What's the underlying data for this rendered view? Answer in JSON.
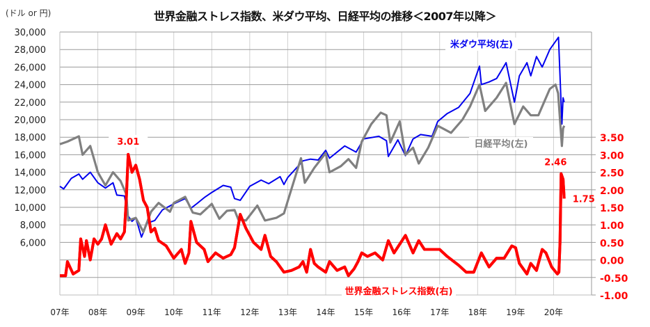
{
  "chart_data": {
    "type": "line",
    "title": "世界金融ストレス指数、米ダウ平均、日経平均の推移＜2007年以降＞",
    "left_axis_unit": "(ドル or 円)",
    "left_axis": {
      "range": [
        0,
        30000
      ],
      "ticks": [
        "30,000",
        "28,000",
        "26,000",
        "24,000",
        "22,000",
        "20,000",
        "18,000",
        "16,000",
        "14,000",
        "12,000",
        "10,000",
        "8,000",
        "6,000"
      ],
      "tick_values": [
        30000,
        28000,
        26000,
        24000,
        22000,
        20000,
        18000,
        16000,
        14000,
        12000,
        10000,
        8000,
        6000
      ]
    },
    "right_axis": {
      "range": [
        -1.0,
        6.5
      ],
      "ticks": [
        "3.50",
        "3.00",
        "2.50",
        "2.00",
        "1.50",
        "1.00",
        "0.50",
        "0.00",
        "-0.50",
        "-1.00"
      ],
      "tick_values": [
        3.5,
        3.0,
        2.5,
        2.0,
        1.5,
        1.0,
        0.5,
        0.0,
        -0.5,
        -1.0
      ]
    },
    "x_axis": {
      "range": [
        2007,
        2021
      ],
      "ticks": [
        "07年",
        "08年",
        "09年",
        "10年",
        "11年",
        "12年",
        "13年",
        "14年",
        "15年",
        "16年",
        "17年",
        "18年",
        "19年",
        "20年"
      ],
      "tick_values": [
        2007,
        2008,
        2009,
        2010,
        2011,
        2012,
        2013,
        2014,
        2015,
        2016,
        2017,
        2018,
        2019,
        2020
      ]
    },
    "grid": true,
    "series": [
      {
        "name": "米ダウ平均(左)",
        "axis": "left",
        "color": "#0000ee",
        "x": [
          2007.0,
          2007.1,
          2007.3,
          2007.5,
          2007.6,
          2007.8,
          2008.0,
          2008.2,
          2008.4,
          2008.5,
          2008.7,
          2008.8,
          2008.9,
          2009.0,
          2009.15,
          2009.3,
          2009.5,
          2009.7,
          2010.0,
          2010.3,
          2010.45,
          2010.6,
          2010.8,
          2011.0,
          2011.3,
          2011.5,
          2011.6,
          2011.75,
          2012.0,
          2012.3,
          2012.5,
          2012.8,
          2012.9,
          2013.0,
          2013.4,
          2013.6,
          2013.8,
          2014.0,
          2014.1,
          2014.5,
          2014.8,
          2015.0,
          2015.4,
          2015.6,
          2015.65,
          2015.9,
          2016.1,
          2016.3,
          2016.5,
          2016.8,
          2016.95,
          2017.2,
          2017.5,
          2017.8,
          2018.05,
          2018.1,
          2018.3,
          2018.5,
          2018.75,
          2018.97,
          2019.1,
          2019.3,
          2019.4,
          2019.55,
          2019.7,
          2019.9,
          2020.13,
          2020.17,
          2020.22,
          2020.25,
          2020.28
        ],
        "y": [
          12400,
          12100,
          13300,
          13800,
          13200,
          14000,
          12800,
          12200,
          12800,
          11400,
          11300,
          9000,
          8400,
          8800,
          6600,
          8200,
          8500,
          9700,
          10400,
          11000,
          9900,
          10400,
          11100,
          11700,
          12500,
          12300,
          11000,
          10800,
          12400,
          13100,
          12700,
          13500,
          12600,
          13400,
          15300,
          15500,
          15400,
          16500,
          15600,
          17000,
          16300,
          17800,
          18100,
          17600,
          15800,
          17700,
          15900,
          17800,
          18300,
          18100,
          19800,
          20700,
          21400,
          23000,
          26100,
          24000,
          24300,
          24700,
          26500,
          22000,
          25000,
          26500,
          25000,
          27200,
          26000,
          28000,
          29400,
          25000,
          19500,
          22500,
          22000
        ]
      },
      {
        "name": "日経平均(左)",
        "axis": "left",
        "color": "#808080",
        "x": [
          2007.0,
          2007.2,
          2007.5,
          2007.6,
          2007.8,
          2008.0,
          2008.2,
          2008.4,
          2008.6,
          2008.75,
          2008.8,
          2009.0,
          2009.2,
          2009.4,
          2009.6,
          2009.9,
          2010.0,
          2010.3,
          2010.5,
          2010.7,
          2011.0,
          2011.2,
          2011.4,
          2011.6,
          2011.7,
          2011.9,
          2012.2,
          2012.4,
          2012.7,
          2012.9,
          2013.0,
          2013.35,
          2013.45,
          2013.7,
          2014.0,
          2014.1,
          2014.4,
          2014.6,
          2014.8,
          2014.95,
          2015.2,
          2015.45,
          2015.6,
          2015.7,
          2015.95,
          2016.1,
          2016.3,
          2016.45,
          2016.7,
          2016.95,
          2017.3,
          2017.6,
          2017.8,
          2018.05,
          2018.2,
          2018.5,
          2018.75,
          2018.97,
          2019.2,
          2019.4,
          2019.6,
          2019.9,
          2020.05,
          2020.12,
          2020.17,
          2020.22,
          2020.25,
          2020.28
        ],
        "y": [
          17200,
          17500,
          18100,
          16000,
          17000,
          14000,
          12500,
          14000,
          13000,
          11500,
          8500,
          8800,
          7200,
          9500,
          10500,
          9500,
          10500,
          11200,
          9400,
          9200,
          10400,
          8700,
          9600,
          9700,
          8600,
          8500,
          10200,
          8500,
          8800,
          9300,
          10700,
          15600,
          12800,
          14500,
          16200,
          14000,
          14700,
          15500,
          14500,
          17500,
          19500,
          20800,
          20500,
          17400,
          19800,
          16000,
          16800,
          15000,
          16800,
          19300,
          18500,
          20000,
          21500,
          24000,
          21000,
          22500,
          24200,
          19500,
          21500,
          20500,
          20500,
          23500,
          24000,
          23000,
          20000,
          17000,
          19000,
          19300
        ]
      },
      {
        "name": "世界金融ストレス指数(右)",
        "axis": "right",
        "color": "#ff0000",
        "x": [
          2007.0,
          2007.15,
          2007.2,
          2007.35,
          2007.5,
          2007.55,
          2007.65,
          2007.7,
          2007.8,
          2007.9,
          2008.0,
          2008.1,
          2008.2,
          2008.35,
          2008.5,
          2008.6,
          2008.7,
          2008.75,
          2008.8,
          2008.9,
          2009.0,
          2009.1,
          2009.2,
          2009.3,
          2009.4,
          2009.5,
          2009.6,
          2009.8,
          2010.0,
          2010.2,
          2010.3,
          2010.4,
          2010.45,
          2010.6,
          2010.8,
          2010.9,
          2011.1,
          2011.3,
          2011.5,
          2011.6,
          2011.75,
          2011.9,
          2012.0,
          2012.1,
          2012.3,
          2012.4,
          2012.55,
          2012.7,
          2012.9,
          2013.1,
          2013.3,
          2013.4,
          2013.5,
          2013.6,
          2013.7,
          2013.8,
          2014.0,
          2014.1,
          2014.3,
          2014.5,
          2014.6,
          2014.75,
          2014.85,
          2014.95,
          2015.1,
          2015.3,
          2015.5,
          2015.65,
          2015.8,
          2016.1,
          2016.3,
          2016.45,
          2016.6,
          2016.8,
          2017.0,
          2017.2,
          2017.5,
          2017.7,
          2017.9,
          2018.1,
          2018.3,
          2018.5,
          2018.7,
          2018.9,
          2019.0,
          2019.1,
          2019.3,
          2019.4,
          2019.55,
          2019.7,
          2019.8,
          2019.95,
          2020.1,
          2020.14,
          2020.17,
          2020.2,
          2020.25,
          2020.28
        ],
        "y": [
          -0.45,
          -0.45,
          -0.05,
          -0.4,
          -0.3,
          0.6,
          0.1,
          0.55,
          0.0,
          0.6,
          0.45,
          0.6,
          1.0,
          0.45,
          0.75,
          0.6,
          0.8,
          1.75,
          3.01,
          2.5,
          2.7,
          2.3,
          1.7,
          1.5,
          0.8,
          0.9,
          0.55,
          0.4,
          0.05,
          0.3,
          -0.1,
          0.2,
          1.1,
          0.5,
          0.3,
          -0.05,
          0.2,
          0.05,
          0.15,
          0.35,
          1.3,
          0.9,
          0.7,
          0.5,
          0.3,
          0.7,
          0.1,
          -0.05,
          -0.35,
          -0.3,
          -0.2,
          -0.05,
          -0.35,
          0.3,
          -0.1,
          -0.2,
          -0.35,
          -0.05,
          -0.3,
          -0.2,
          -0.45,
          -0.25,
          -0.05,
          0.2,
          0.1,
          0.2,
          0.0,
          0.55,
          0.2,
          0.7,
          0.2,
          0.55,
          0.3,
          0.3,
          0.3,
          0.1,
          -0.15,
          -0.35,
          -0.35,
          0.2,
          -0.2,
          0.05,
          0.05,
          0.4,
          0.35,
          -0.1,
          -0.4,
          -0.1,
          -0.3,
          0.3,
          0.2,
          -0.2,
          -0.4,
          -0.35,
          0.5,
          2.46,
          2.3,
          1.75
        ]
      }
    ],
    "annotations": [
      {
        "text": "3.01",
        "series": "世界金融ストレス指数(右)",
        "x": 2008.8,
        "y": 3.01
      },
      {
        "text": "2.46",
        "series": "世界金融ストレス指数(右)",
        "x": 2020.2,
        "y": 2.46
      },
      {
        "text": "1.75",
        "series": "世界金融ストレス指数(右)",
        "x": 2020.28,
        "y": 1.75
      }
    ],
    "legend": "inline labels"
  }
}
